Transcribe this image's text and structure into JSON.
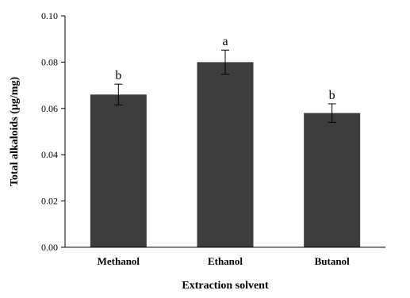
{
  "chart_data": {
    "type": "bar",
    "categories": [
      "Methanol",
      "Ethanol",
      "Butanol"
    ],
    "values": [
      0.066,
      0.08,
      0.058
    ],
    "error": [
      0.0045,
      0.0052,
      0.004
    ],
    "significance": [
      "b",
      "a",
      "b"
    ],
    "xlabel": "Extraction solvent",
    "ylabel": "Total alkaloids (µg/mg)",
    "ylim": [
      0,
      0.1
    ],
    "yticks": [
      "0.00",
      "0.02",
      "0.04",
      "0.06",
      "0.08",
      "0.10"
    ],
    "bar_color": "#3d3d3d",
    "grid": false,
    "legend": "none"
  }
}
